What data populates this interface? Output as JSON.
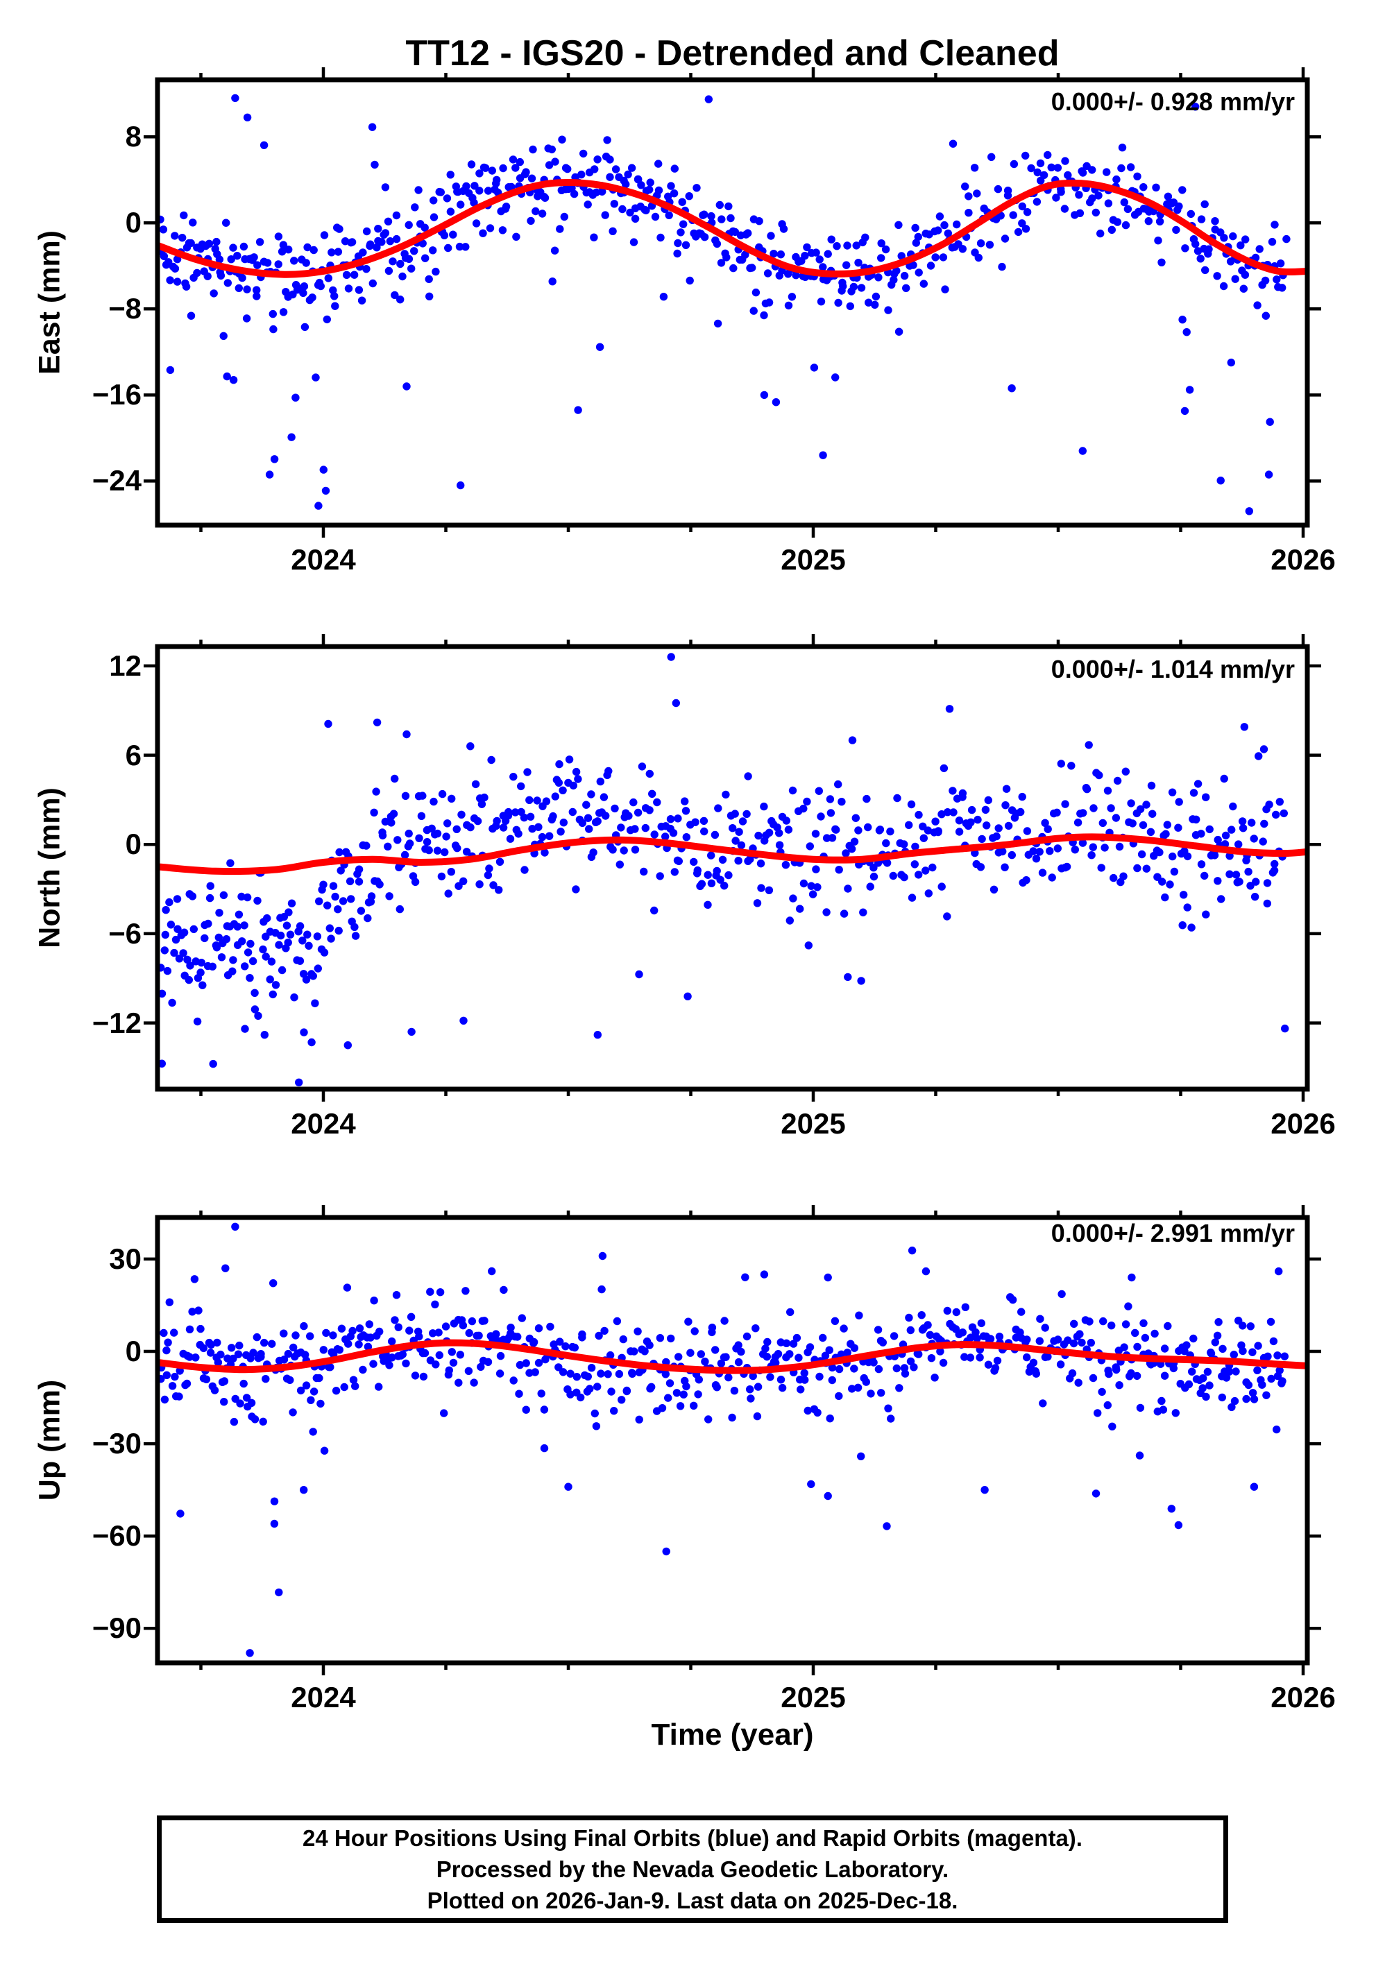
{
  "title": "TT12 - IGS20 - Detrended and Cleaned",
  "station": "TT12",
  "reference_frame": "IGS20",
  "processing": "Detrended and Cleaned",
  "colors": {
    "scatter": "#0000ff",
    "fit": "#ff0000",
    "frame": "#000000",
    "background": "#ffffff",
    "text": "#000000"
  },
  "seed": 20260109,
  "x_axis": {
    "label": "Time (year)",
    "major_ticks": [
      2024,
      2025,
      2026
    ],
    "minor_step": 0.25,
    "range": [
      2023.6615,
      2026.0085
    ]
  },
  "footer": {
    "lines": [
      "24 Hour Positions Using Final Orbits (blue) and Rapid Orbits (magenta).",
      "Processed by the Nevada Geodetic Laboratory.",
      "Plotted on 2026-Jan-9. Last data on 2025-Dec-18."
    ]
  },
  "chart_data": [
    {
      "type": "scatter",
      "name": "east",
      "ylabel": "East (mm)",
      "annotation": "0.000+/- 0.928 mm/yr",
      "trend_mm_per_yr": "0.000",
      "uncertainty_mm_per_yr": "0.928",
      "y_ticks": [
        8,
        0,
        -8,
        -16,
        -24
      ],
      "ylim": [
        -28.1,
        13.3
      ],
      "grid": false,
      "fit_curve": [
        [
          2023.662,
          -2.1
        ],
        [
          2023.74,
          -3.4
        ],
        [
          2023.83,
          -4.4
        ],
        [
          2023.92,
          -4.8
        ],
        [
          2024.0,
          -4.5
        ],
        [
          2024.08,
          -3.6
        ],
        [
          2024.16,
          -2.2
        ],
        [
          2024.24,
          -0.4
        ],
        [
          2024.32,
          1.5
        ],
        [
          2024.4,
          3.0
        ],
        [
          2024.47,
          3.7
        ],
        [
          2024.55,
          3.6
        ],
        [
          2024.63,
          2.8
        ],
        [
          2024.71,
          1.4
        ],
        [
          2024.79,
          -0.5
        ],
        [
          2024.87,
          -2.5
        ],
        [
          2024.95,
          -4.1
        ],
        [
          2025.02,
          -4.7
        ],
        [
          2025.1,
          -4.6
        ],
        [
          2025.18,
          -3.7
        ],
        [
          2025.26,
          -2.1
        ],
        [
          2025.33,
          -0.2
        ],
        [
          2025.4,
          1.8
        ],
        [
          2025.47,
          3.3
        ],
        [
          2025.53,
          3.7
        ],
        [
          2025.6,
          3.3
        ],
        [
          2025.68,
          2.0
        ],
        [
          2025.75,
          0.2
        ],
        [
          2025.82,
          -1.9
        ],
        [
          2025.89,
          -3.6
        ],
        [
          2025.95,
          -4.5
        ],
        [
          2026.008,
          -4.5
        ]
      ],
      "scatter_model": {
        "segments": [
          {
            "t": [
              2023.665,
              2024.03
            ],
            "n": 118,
            "sigma": 1.7,
            "bias": 0,
            "neg_p": 0.28,
            "neg_s": 5.5,
            "pos_p": 0.02,
            "pos_s": 4
          },
          {
            "t": [
              2024.03,
              2024.36
            ],
            "n": 96,
            "sigma": 2.3,
            "bias": 0.3,
            "neg_p": 0.1,
            "neg_s": 6,
            "pos_p": 0.03,
            "pos_s": 3.5
          },
          {
            "t": [
              2024.36,
              2024.72
            ],
            "n": 112,
            "sigma": 1.8,
            "bias": 0.2,
            "neg_p": 0.08,
            "neg_s": 6,
            "pos_p": 0.02,
            "pos_s": 2.5
          },
          {
            "t": [
              2024.72,
              2025.12
            ],
            "n": 116,
            "sigma": 1.9,
            "bias": 0,
            "neg_p": 0.1,
            "neg_s": 5,
            "pos_p": 0.02,
            "pos_s": 3
          },
          {
            "t": [
              2025.12,
              2025.65
            ],
            "n": 132,
            "sigma": 1.9,
            "bias": 0.2,
            "neg_p": 0.07,
            "neg_s": 5.5,
            "pos_p": 0.03,
            "pos_s": 2.5
          },
          {
            "t": [
              2025.65,
              2025.965
            ],
            "n": 92,
            "sigma": 2.0,
            "bias": 0,
            "neg_p": 0.22,
            "neg_s": 7,
            "pos_p": 0.02,
            "pos_s": 3
          }
        ],
        "outliers": [
          [
            2023.82,
            11.6
          ],
          [
            2023.845,
            9.8
          ],
          [
            2024.1,
            8.9
          ],
          [
            2025.78,
            10.8
          ],
          [
            2023.99,
            -26.3
          ],
          [
            2024.005,
            -24.9
          ],
          [
            2024.28,
            -24.4
          ],
          [
            2024.17,
            -15.2
          ],
          [
            2024.52,
            -17.4
          ],
          [
            2024.9,
            -16.0
          ],
          [
            2025.02,
            -21.6
          ],
          [
            2025.55,
            -21.2
          ],
          [
            2025.89,
            -26.8
          ],
          [
            2025.93,
            -23.4
          ]
        ]
      }
    },
    {
      "type": "scatter",
      "name": "north",
      "ylabel": "North (mm)",
      "annotation": "0.000+/- 1.014 mm/yr",
      "trend_mm_per_yr": "0.000",
      "uncertainty_mm_per_yr": "1.014",
      "y_ticks": [
        12,
        6,
        0,
        -6,
        -12
      ],
      "ylim": [
        -16.45,
        13.3
      ],
      "grid": false,
      "fit_curve": [
        [
          2023.662,
          -1.5
        ],
        [
          2023.78,
          -1.8
        ],
        [
          2023.9,
          -1.7
        ],
        [
          2024.0,
          -1.2
        ],
        [
          2024.1,
          -1.0
        ],
        [
          2024.2,
          -1.2
        ],
        [
          2024.3,
          -1.0
        ],
        [
          2024.4,
          -0.4
        ],
        [
          2024.5,
          0.1
        ],
        [
          2024.6,
          0.3
        ],
        [
          2024.7,
          0.1
        ],
        [
          2024.8,
          -0.3
        ],
        [
          2024.9,
          -0.7
        ],
        [
          2025.0,
          -1.0
        ],
        [
          2025.1,
          -1.0
        ],
        [
          2025.2,
          -0.6
        ],
        [
          2025.3,
          -0.3
        ],
        [
          2025.4,
          0.0
        ],
        [
          2025.5,
          0.4
        ],
        [
          2025.58,
          0.5
        ],
        [
          2025.68,
          0.3
        ],
        [
          2025.78,
          -0.1
        ],
        [
          2025.88,
          -0.5
        ],
        [
          2025.96,
          -0.6
        ],
        [
          2026.008,
          -0.5
        ]
      ],
      "scatter_model": {
        "segments": [
          {
            "t": [
              2023.665,
              2023.99
            ],
            "n": 112,
            "sigma": 2.2,
            "bias": -5.0,
            "neg_p": 0.12,
            "neg_s": 2.6,
            "pos_p": 0.1,
            "pos_s": 2.6
          },
          {
            "t": [
              2023.99,
              2024.1
            ],
            "n": 34,
            "sigma": 2.2,
            "bias": -2.2,
            "neg_p": 0.08,
            "neg_s": 3,
            "pos_p": 0.06,
            "pos_s": 3
          },
          {
            "t": [
              2024.1,
              2024.6
            ],
            "n": 142,
            "sigma": 1.9,
            "bias": 1.8,
            "neg_p": 0.07,
            "neg_s": 3.0,
            "pos_p": 0.05,
            "pos_s": 2.4
          },
          {
            "t": [
              2024.6,
              2025.15
            ],
            "n": 152,
            "sigma": 2.0,
            "bias": 0.5,
            "neg_p": 0.16,
            "neg_s": 3.2,
            "pos_p": 0.03,
            "pos_s": 2.2
          },
          {
            "t": [
              2025.15,
              2025.7
            ],
            "n": 142,
            "sigma": 1.8,
            "bias": 0.8,
            "neg_p": 0.05,
            "neg_s": 2.6,
            "pos_p": 0.05,
            "pos_s": 2.2
          },
          {
            "t": [
              2025.7,
              2025.965
            ],
            "n": 78,
            "sigma": 2.1,
            "bias": 0.3,
            "neg_p": 0.12,
            "neg_s": 3.0,
            "pos_p": 0.05,
            "pos_s": 2.6
          }
        ],
        "outliers": [
          [
            2023.95,
            -16.0
          ],
          [
            2023.84,
            -12.4
          ],
          [
            2023.88,
            -12.8
          ],
          [
            2024.05,
            -13.5
          ],
          [
            2024.18,
            -12.6
          ],
          [
            2024.56,
            -12.8
          ],
          [
            2024.71,
            12.6
          ],
          [
            2024.72,
            9.5
          ],
          [
            2024.01,
            8.1
          ],
          [
            2024.11,
            8.2
          ],
          [
            2024.17,
            7.4
          ],
          [
            2024.3,
            6.6
          ],
          [
            2025.08,
            7.0
          ],
          [
            2025.88,
            7.9
          ],
          [
            2025.92,
            6.4
          ]
        ]
      }
    },
    {
      "type": "scatter",
      "name": "up",
      "ylabel": "Up (mm)",
      "annotation": "0.000+/- 2.991 mm/yr",
      "trend_mm_per_yr": "0.000",
      "uncertainty_mm_per_yr": "2.991",
      "y_ticks": [
        30,
        0,
        -30,
        -60,
        -90
      ],
      "ylim": [
        -101.2,
        43.5
      ],
      "grid": false,
      "fit_curve": [
        [
          2023.662,
          -3.6
        ],
        [
          2023.75,
          -5.2
        ],
        [
          2023.84,
          -5.9
        ],
        [
          2023.93,
          -5.0
        ],
        [
          2024.02,
          -2.8
        ],
        [
          2024.1,
          -0.2
        ],
        [
          2024.18,
          1.9
        ],
        [
          2024.26,
          2.8
        ],
        [
          2024.34,
          2.2
        ],
        [
          2024.42,
          0.6
        ],
        [
          2024.5,
          -1.4
        ],
        [
          2024.58,
          -3.2
        ],
        [
          2024.66,
          -4.7
        ],
        [
          2024.74,
          -5.7
        ],
        [
          2024.82,
          -6.2
        ],
        [
          2024.9,
          -6.0
        ],
        [
          2024.98,
          -4.8
        ],
        [
          2025.06,
          -2.8
        ],
        [
          2025.14,
          -0.6
        ],
        [
          2025.22,
          1.3
        ],
        [
          2025.3,
          2.2
        ],
        [
          2025.38,
          1.8
        ],
        [
          2025.46,
          0.6
        ],
        [
          2025.54,
          -0.7
        ],
        [
          2025.62,
          -1.8
        ],
        [
          2025.7,
          -2.4
        ],
        [
          2025.78,
          -2.8
        ],
        [
          2025.86,
          -3.3
        ],
        [
          2025.94,
          -4.1
        ],
        [
          2026.008,
          -4.7
        ]
      ],
      "scatter_model": {
        "segments": [
          {
            "t": [
              2023.665,
              2024.0
            ],
            "n": 108,
            "sigma": 8.5,
            "bias": 0,
            "neg_p": 0.09,
            "neg_s": 16,
            "pos_p": 0.06,
            "pos_s": 11
          },
          {
            "t": [
              2024.0,
              2024.5
            ],
            "n": 140,
            "sigma": 7.2,
            "bias": 0.5,
            "neg_p": 0.06,
            "neg_s": 14,
            "pos_p": 0.05,
            "pos_s": 8
          },
          {
            "t": [
              2024.5,
              2025.05
            ],
            "n": 152,
            "sigma": 7.6,
            "bias": 0,
            "neg_p": 0.06,
            "neg_s": 13,
            "pos_p": 0.06,
            "pos_s": 9
          },
          {
            "t": [
              2025.05,
              2025.6
            ],
            "n": 148,
            "sigma": 7.0,
            "bias": 0.5,
            "neg_p": 0.06,
            "neg_s": 12,
            "pos_p": 0.05,
            "pos_s": 9
          },
          {
            "t": [
              2025.6,
              2025.965
            ],
            "n": 108,
            "sigma": 7.6,
            "bias": 0,
            "neg_p": 0.08,
            "neg_s": 13,
            "pos_p": 0.05,
            "pos_s": 9
          }
        ],
        "outliers": [
          [
            2023.85,
            -98
          ],
          [
            2023.9,
            -56
          ],
          [
            2023.96,
            -45
          ],
          [
            2024.5,
            -44
          ],
          [
            2024.7,
            -65
          ],
          [
            2025.03,
            -47
          ],
          [
            2025.35,
            -45
          ],
          [
            2025.9,
            -44
          ],
          [
            2023.8,
            27
          ],
          [
            2023.82,
            40.5
          ],
          [
            2024.57,
            31
          ],
          [
            2024.9,
            25
          ],
          [
            2025.03,
            24
          ],
          [
            2025.23,
            26
          ],
          [
            2025.65,
            24
          ],
          [
            2025.95,
            26
          ]
        ]
      }
    }
  ]
}
